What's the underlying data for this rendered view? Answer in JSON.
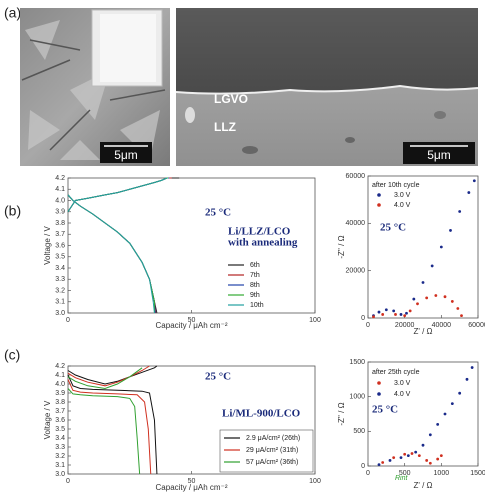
{
  "figure": {
    "panel_labels": [
      "(a)",
      "(b)",
      "(c)"
    ],
    "sem_labels": [
      "LGVO",
      "LLZ"
    ],
    "scale_bars": [
      "5μm",
      "5μm"
    ]
  },
  "chart_data": [
    {
      "type": "line",
      "xlabel": "Capacity / μAh cm⁻²",
      "ylabel": "Voltage / V",
      "xlim": [
        0,
        100
      ],
      "ylim": [
        3.0,
        4.2
      ],
      "xticks": [
        0,
        50,
        100
      ],
      "yticks": [
        {
          "value": 3,
          "label": "3.0"
        },
        3.1,
        3.2,
        3.3,
        3.4,
        3.5,
        3.6,
        3.7,
        3.8,
        3.9,
        {
          "value": 4,
          "label": "4.0"
        },
        4.1,
        4.2
      ],
      "annotations": [
        "25 °C",
        "Li/LLZ/LCO",
        "with annealing"
      ],
      "series": [
        {
          "name": "6th",
          "color": "#222222",
          "x": [
            0,
            2,
            5,
            10,
            15,
            20,
            25,
            30,
            33,
            35,
            36,
            null,
            0,
            3,
            8,
            15,
            20,
            25,
            30,
            35,
            38,
            40,
            45
          ],
          "values": [
            4.05,
            4.0,
            3.95,
            3.88,
            3.8,
            3.72,
            3.62,
            3.45,
            3.3,
            3.1,
            3.0,
            null,
            3.9,
            4.0,
            4.02,
            4.05,
            4.07,
            4.1,
            4.13,
            4.16,
            4.18,
            4.2,
            4.2
          ]
        },
        {
          "name": "7th",
          "color": "#b22222",
          "x": [
            0,
            2,
            5,
            10,
            15,
            20,
            25,
            30,
            33,
            35,
            35.5,
            null,
            0,
            3,
            8,
            15,
            20,
            25,
            30,
            35,
            38,
            40,
            42
          ],
          "values": [
            4.05,
            4.0,
            3.95,
            3.88,
            3.8,
            3.72,
            3.62,
            3.45,
            3.3,
            3.1,
            3.0,
            null,
            3.9,
            4.0,
            4.02,
            4.05,
            4.07,
            4.1,
            4.13,
            4.16,
            4.18,
            4.2,
            4.2
          ]
        },
        {
          "name": "8th",
          "color": "#2244aa",
          "x": [
            0,
            2,
            5,
            10,
            15,
            20,
            25,
            30,
            33,
            35,
            35.3,
            null,
            0,
            3,
            8,
            15,
            20,
            25,
            30,
            35,
            38,
            40,
            41
          ],
          "values": [
            4.05,
            4.0,
            3.95,
            3.88,
            3.8,
            3.72,
            3.62,
            3.45,
            3.3,
            3.1,
            3.0,
            null,
            3.9,
            4.0,
            4.02,
            4.05,
            4.07,
            4.1,
            4.13,
            4.16,
            4.18,
            4.2,
            4.2
          ]
        },
        {
          "name": "9th",
          "color": "#33aa33",
          "x": [
            0,
            2,
            5,
            10,
            15,
            20,
            25,
            30,
            33,
            35,
            35,
            null,
            0,
            3,
            8,
            15,
            20,
            25,
            30,
            35,
            38,
            40,
            40.5
          ],
          "values": [
            4.05,
            4.0,
            3.95,
            3.88,
            3.8,
            3.72,
            3.62,
            3.45,
            3.3,
            3.1,
            3.0,
            null,
            3.9,
            4.0,
            4.02,
            4.05,
            4.07,
            4.1,
            4.13,
            4.16,
            4.18,
            4.2,
            4.2
          ]
        },
        {
          "name": "10th",
          "color": "#22a0a0",
          "x": [
            0,
            2,
            5,
            10,
            15,
            20,
            25,
            30,
            33,
            34.5,
            35,
            null,
            0,
            3,
            8,
            15,
            20,
            25,
            30,
            35,
            38,
            40,
            40
          ],
          "values": [
            4.05,
            4.0,
            3.95,
            3.88,
            3.8,
            3.72,
            3.62,
            3.45,
            3.3,
            3.1,
            3.0,
            null,
            3.9,
            4.0,
            4.02,
            4.05,
            4.07,
            4.1,
            4.13,
            4.16,
            4.18,
            4.2,
            4.2
          ]
        }
      ]
    },
    {
      "type": "scatter",
      "xlabel": "Z' / Ω",
      "ylabel": "-Z'' / Ω",
      "xlim": [
        0,
        60000
      ],
      "ylim": [
        0,
        60000
      ],
      "xticks": [
        0,
        20000,
        40000,
        60000
      ],
      "yticks": [
        0,
        20000,
        40000,
        60000
      ],
      "legend_title": "after 10th cycle",
      "annotations": [
        "25 °C"
      ],
      "series": [
        {
          "name": "3.0 V",
          "color": "#1a2a8a",
          "x": [
            3000,
            6000,
            10000,
            14000,
            18000,
            21000,
            25000,
            30000,
            35000,
            40000,
            45000,
            50000,
            55000,
            58000
          ],
          "values": [
            1000,
            2500,
            3500,
            3000,
            1500,
            2000,
            8000,
            15000,
            22000,
            30000,
            37000,
            45000,
            53000,
            58000
          ]
        },
        {
          "name": "4.0 V",
          "color": "#d03020",
          "x": [
            3000,
            8000,
            15000,
            20000,
            23000,
            27000,
            32000,
            37000,
            42000,
            46000,
            49000,
            51000
          ],
          "values": [
            500,
            1500,
            1500,
            1000,
            3000,
            6000,
            8500,
            9500,
            9000,
            7000,
            4000,
            1000
          ]
        }
      ]
    },
    {
      "type": "line",
      "xlabel": "Capacity / μAh cm⁻²",
      "ylabel": "Voltage / V",
      "xlim": [
        0,
        100
      ],
      "ylim": [
        3.0,
        4.2
      ],
      "xticks": [
        0,
        50,
        100
      ],
      "yticks": [
        {
          "value": 3,
          "label": "3.0"
        },
        3.1,
        3.2,
        3.3,
        3.4,
        3.5,
        3.6,
        3.7,
        3.8,
        3.9,
        {
          "value": 4,
          "label": "4.0"
        },
        4.1,
        4.2
      ],
      "annotations": [
        "25 °C",
        "Li/ML-900/LCO"
      ],
      "series": [
        {
          "name": "2.9 μA/cm² (26th)",
          "color": "#111111",
          "x": [
            0,
            2,
            5,
            10,
            20,
            30,
            33,
            35,
            36,
            null,
            0,
            3,
            8,
            15,
            20,
            25,
            30,
            35,
            36
          ],
          "values": [
            4.1,
            3.98,
            3.95,
            3.94,
            3.93,
            3.92,
            3.9,
            3.6,
            3.0,
            null,
            4.15,
            4.1,
            4.05,
            4.0,
            4.03,
            4.08,
            4.13,
            4.18,
            4.2
          ]
        },
        {
          "name": "29 μA/cm² (31th)",
          "color": "#d03020",
          "x": [
            0,
            2,
            5,
            10,
            20,
            28,
            31,
            32.5,
            33.5,
            null,
            0,
            3,
            8,
            15,
            20,
            25,
            30,
            33
          ],
          "values": [
            4.05,
            3.93,
            3.91,
            3.9,
            3.89,
            3.88,
            3.8,
            3.5,
            3.0,
            null,
            4.12,
            4.07,
            4.02,
            3.98,
            4.02,
            4.08,
            4.15,
            4.2
          ]
        },
        {
          "name": "57 μA/cm² (36th)",
          "color": "#30a030",
          "x": [
            0,
            2,
            5,
            10,
            20,
            25,
            27,
            28,
            29,
            null,
            0,
            3,
            8,
            15,
            20,
            25,
            30
          ],
          "values": [
            3.95,
            3.89,
            3.88,
            3.87,
            3.86,
            3.84,
            3.75,
            3.4,
            3.0,
            null,
            4.08,
            4.03,
            3.98,
            3.95,
            4.0,
            4.08,
            4.18
          ]
        }
      ]
    },
    {
      "type": "scatter",
      "xlabel": "Z' / Ω",
      "ylabel": "-Z'' / Ω",
      "xlim": [
        0,
        1500
      ],
      "ylim": [
        0,
        1500
      ],
      "xticks": [
        0,
        500,
        1000,
        1500
      ],
      "yticks": [
        0,
        500,
        1000,
        1500
      ],
      "legend_title": "after 25th cycle",
      "annotations": [
        "25 °C",
        "Rint"
      ],
      "series": [
        {
          "name": "3.0 V",
          "color": "#d03020",
          "x": [
            200,
            350,
            500,
            600,
            700,
            800,
            850,
            950,
            1000
          ],
          "values": [
            50,
            120,
            170,
            180,
            150,
            80,
            40,
            100,
            150
          ]
        },
        {
          "name": "4.0 V",
          "color": "#1a2a8a",
          "x": [
            150,
            300,
            450,
            550,
            650,
            750,
            850,
            950,
            1050,
            1150,
            1250,
            1350,
            1420
          ],
          "values": [
            20,
            80,
            120,
            150,
            200,
            300,
            450,
            600,
            750,
            900,
            1050,
            1250,
            1420
          ]
        }
      ]
    }
  ]
}
